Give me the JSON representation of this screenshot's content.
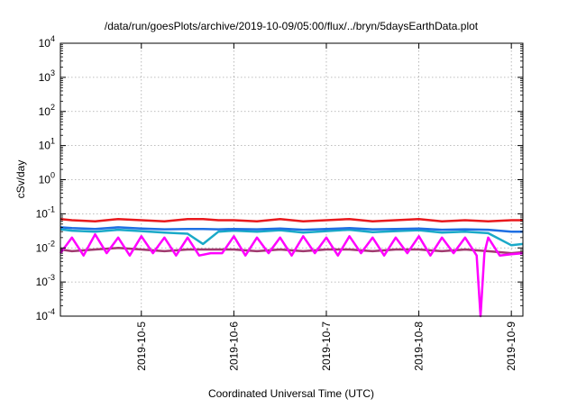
{
  "chart_data": {
    "type": "line",
    "title": "/data/run/goesPlots/archive/2019-10-09/05:00/flux/../bryn/5daysEarthData.plot",
    "xlabel": "Coordinated Universal Time (UTC)",
    "ylabel": "cSv/day",
    "x_scale": "time",
    "y_scale": "log",
    "xlim": [
      "2019-10-04T03:00",
      "2019-10-09T03:00"
    ],
    "ylim": [
      0.0001,
      10000
    ],
    "grid": true,
    "x_tick_values": [
      "2019-10-05",
      "2019-10-06",
      "2019-10-07",
      "2019-10-08",
      "2019-10-09"
    ],
    "x_tick_labels": [
      "2019-10-5",
      "2019-10-6",
      "2019-10-7",
      "2019-10-8",
      "2019-10-9"
    ],
    "y_ticks": [
      {
        "value": 0.0001,
        "base": "10",
        "exp": "-4"
      },
      {
        "value": 0.001,
        "base": "10",
        "exp": "-3"
      },
      {
        "value": 0.01,
        "base": "10",
        "exp": "-2"
      },
      {
        "value": 0.1,
        "base": "10",
        "exp": "-1"
      },
      {
        "value": 1,
        "base": "10",
        "exp": "0"
      },
      {
        "value": 10,
        "base": "10",
        "exp": "1"
      },
      {
        "value": 100,
        "base": "10",
        "exp": "2"
      },
      {
        "value": 1000,
        "base": "10",
        "exp": "3"
      },
      {
        "value": 10000,
        "base": "10",
        "exp": "4"
      }
    ],
    "series": [
      {
        "color": "#e8191d",
        "x": [
          "2019-10-04T03:00",
          "2019-10-04T06:00",
          "2019-10-04T12:00",
          "2019-10-04T18:00",
          "2019-10-05T00:00",
          "2019-10-05T06:00",
          "2019-10-05T12:00",
          "2019-10-05T16:00",
          "2019-10-05T20:00",
          "2019-10-06T00:00",
          "2019-10-06T06:00",
          "2019-10-06T12:00",
          "2019-10-06T18:00",
          "2019-10-07T00:00",
          "2019-10-07T06:00",
          "2019-10-07T12:00",
          "2019-10-07T18:00",
          "2019-10-08T00:00",
          "2019-10-08T06:00",
          "2019-10-08T12:00",
          "2019-10-08T18:00",
          "2019-10-09T00:00",
          "2019-10-09T03:00"
        ],
        "values": [
          0.07,
          0.065,
          0.06,
          0.07,
          0.065,
          0.06,
          0.07,
          0.07,
          0.065,
          0.065,
          0.06,
          0.07,
          0.06,
          0.065,
          0.07,
          0.06,
          0.065,
          0.07,
          0.06,
          0.065,
          0.06,
          0.065,
          0.065
        ]
      },
      {
        "color": "#1aa9c8",
        "x": [
          "2019-10-04T03:00",
          "2019-10-04T06:00",
          "2019-10-04T12:00",
          "2019-10-04T18:00",
          "2019-10-05T00:00",
          "2019-10-05T06:00",
          "2019-10-05T12:00",
          "2019-10-05T16:00",
          "2019-10-05T20:00",
          "2019-10-06T00:00",
          "2019-10-06T06:00",
          "2019-10-06T12:00",
          "2019-10-06T18:00",
          "2019-10-07T00:00",
          "2019-10-07T06:00",
          "2019-10-07T12:00",
          "2019-10-07T18:00",
          "2019-10-08T00:00",
          "2019-10-08T06:00",
          "2019-10-08T12:00",
          "2019-10-08T18:00",
          "2019-10-09T00:00",
          "2019-10-09T03:00"
        ],
        "values": [
          0.035,
          0.032,
          0.03,
          0.034,
          0.031,
          0.028,
          0.026,
          0.013,
          0.03,
          0.032,
          0.03,
          0.033,
          0.028,
          0.031,
          0.034,
          0.029,
          0.031,
          0.033,
          0.028,
          0.03,
          0.027,
          0.012,
          0.013
        ]
      },
      {
        "color": "#1f6fe3",
        "x": [
          "2019-10-04T03:00",
          "2019-10-04T06:00",
          "2019-10-04T12:00",
          "2019-10-04T18:00",
          "2019-10-05T00:00",
          "2019-10-05T06:00",
          "2019-10-05T12:00",
          "2019-10-05T16:00",
          "2019-10-05T20:00",
          "2019-10-06T00:00",
          "2019-10-06T06:00",
          "2019-10-06T12:00",
          "2019-10-06T18:00",
          "2019-10-07T00:00",
          "2019-10-07T06:00",
          "2019-10-07T12:00",
          "2019-10-07T18:00",
          "2019-10-08T00:00",
          "2019-10-08T06:00",
          "2019-10-08T12:00",
          "2019-10-08T18:00",
          "2019-10-09T00:00",
          "2019-10-09T03:00"
        ],
        "values": [
          0.04,
          0.038,
          0.036,
          0.04,
          0.037,
          0.035,
          0.036,
          0.036,
          0.035,
          0.036,
          0.035,
          0.037,
          0.034,
          0.036,
          0.038,
          0.035,
          0.036,
          0.037,
          0.034,
          0.035,
          0.034,
          0.03,
          0.03
        ]
      },
      {
        "color": "#a03a6f",
        "x": [
          "2019-10-04T03:00",
          "2019-10-04T06:00",
          "2019-10-04T12:00",
          "2019-10-04T18:00",
          "2019-10-05T00:00",
          "2019-10-05T06:00",
          "2019-10-05T12:00",
          "2019-10-05T16:00",
          "2019-10-05T20:00",
          "2019-10-06T00:00",
          "2019-10-06T06:00",
          "2019-10-06T12:00",
          "2019-10-06T18:00",
          "2019-10-07T00:00",
          "2019-10-07T06:00",
          "2019-10-07T12:00",
          "2019-10-07T18:00",
          "2019-10-08T00:00",
          "2019-10-08T06:00",
          "2019-10-08T12:00",
          "2019-10-08T18:00",
          "2019-10-09T00:00",
          "2019-10-09T03:00"
        ],
        "values": [
          0.009,
          0.008,
          0.009,
          0.01,
          0.009,
          0.008,
          0.009,
          0.009,
          0.009,
          0.009,
          0.008,
          0.009,
          0.008,
          0.009,
          0.009,
          0.008,
          0.009,
          0.009,
          0.008,
          0.009,
          0.008,
          0.007,
          0.0075
        ]
      },
      {
        "color": "#ff00ff",
        "x": [
          "2019-10-04T03:00",
          "2019-10-04T06:00",
          "2019-10-04T09:00",
          "2019-10-04T12:00",
          "2019-10-04T15:00",
          "2019-10-04T18:00",
          "2019-10-04T21:00",
          "2019-10-05T00:00",
          "2019-10-05T03:00",
          "2019-10-05T06:00",
          "2019-10-05T09:00",
          "2019-10-05T12:00",
          "2019-10-05T15:00",
          "2019-10-05T18:00",
          "2019-10-05T21:00",
          "2019-10-06T00:00",
          "2019-10-06T03:00",
          "2019-10-06T06:00",
          "2019-10-06T09:00",
          "2019-10-06T12:00",
          "2019-10-06T15:00",
          "2019-10-06T18:00",
          "2019-10-06T21:00",
          "2019-10-07T00:00",
          "2019-10-07T03:00",
          "2019-10-07T06:00",
          "2019-10-07T09:00",
          "2019-10-07T12:00",
          "2019-10-07T15:00",
          "2019-10-07T18:00",
          "2019-10-07T21:00",
          "2019-10-08T00:00",
          "2019-10-08T03:00",
          "2019-10-08T06:00",
          "2019-10-08T09:00",
          "2019-10-08T12:00",
          "2019-10-08T15:00",
          "2019-10-08T16:00",
          "2019-10-08T17:00",
          "2019-10-08T18:00",
          "2019-10-08T21:00",
          "2019-10-09T00:00",
          "2019-10-09T03:00"
        ],
        "values": [
          0.007,
          0.02,
          0.006,
          0.025,
          0.007,
          0.02,
          0.006,
          0.022,
          0.007,
          0.02,
          0.006,
          0.02,
          0.006,
          0.007,
          0.007,
          0.022,
          0.006,
          0.02,
          0.007,
          0.02,
          0.006,
          0.022,
          0.007,
          0.02,
          0.006,
          0.022,
          0.007,
          0.02,
          0.006,
          0.02,
          0.007,
          0.022,
          0.006,
          0.02,
          0.007,
          0.02,
          0.006,
          0.0001,
          0.007,
          0.02,
          0.006,
          0.0065,
          0.007
        ]
      }
    ]
  }
}
